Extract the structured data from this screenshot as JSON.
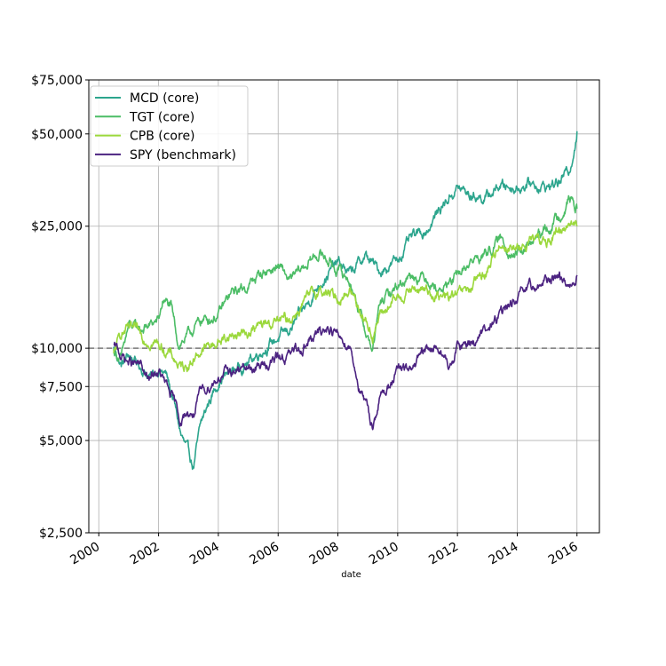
{
  "chart_data": {
    "type": "line",
    "title": "",
    "xlabel": "date",
    "ylabel": "",
    "y_scale": "log",
    "ylim": [
      2500,
      75000
    ],
    "xlim": [
      "1999-09-01",
      "2016-10-01"
    ],
    "grid": true,
    "legend_position": "top-left",
    "reference_line": {
      "value": 10000,
      "style": "dashed",
      "color": "#777777"
    },
    "y_ticks": [
      {
        "value": 2500,
        "label": "$2,500"
      },
      {
        "value": 5000,
        "label": "$5,000"
      },
      {
        "value": 7500,
        "label": "$7,500"
      },
      {
        "value": 10000,
        "label": "$10,000"
      },
      {
        "value": 25000,
        "label": "$25,000"
      },
      {
        "value": 50000,
        "label": "$50,000"
      },
      {
        "value": 75000,
        "label": "$75,000"
      }
    ],
    "x_ticks": [
      {
        "value": "2000-01-01",
        "label": "2000"
      },
      {
        "value": "2002-01-01",
        "label": "2002"
      },
      {
        "value": "2004-01-01",
        "label": "2004"
      },
      {
        "value": "2006-01-01",
        "label": "2006"
      },
      {
        "value": "2008-01-01",
        "label": "2008"
      },
      {
        "value": "2010-01-01",
        "label": "2010"
      },
      {
        "value": "2012-01-01",
        "label": "2012"
      },
      {
        "value": "2014-01-01",
        "label": "2014"
      },
      {
        "value": "2016-01-01",
        "label": "2016"
      }
    ],
    "series": [
      {
        "name": "MCD (core)",
        "color": "#2ca58d",
        "points": [
          [
            "2000-07-01",
            10000
          ],
          [
            "2000-10-01",
            8800
          ],
          [
            "2001-01-01",
            9500
          ],
          [
            "2001-04-01",
            9000
          ],
          [
            "2001-07-01",
            8500
          ],
          [
            "2001-10-01",
            8000
          ],
          [
            "2002-01-01",
            8600
          ],
          [
            "2002-04-01",
            8200
          ],
          [
            "2002-07-01",
            6800
          ],
          [
            "2002-10-01",
            5200
          ],
          [
            "2003-01-01",
            4500
          ],
          [
            "2003-03-01",
            4100
          ],
          [
            "2003-06-01",
            5600
          ],
          [
            "2003-09-01",
            6600
          ],
          [
            "2004-01-01",
            7800
          ],
          [
            "2004-06-01",
            8400
          ],
          [
            "2005-01-01",
            9000
          ],
          [
            "2005-06-01",
            9800
          ],
          [
            "2006-01-01",
            10800
          ],
          [
            "2006-06-01",
            11500
          ],
          [
            "2007-01-01",
            14000
          ],
          [
            "2007-06-01",
            16500
          ],
          [
            "2008-01-01",
            19000
          ],
          [
            "2008-06-01",
            17500
          ],
          [
            "2008-12-01",
            20000
          ],
          [
            "2009-06-01",
            17800
          ],
          [
            "2010-01-01",
            19500
          ],
          [
            "2010-06-01",
            22500
          ],
          [
            "2011-01-01",
            24500
          ],
          [
            "2011-06-01",
            28500
          ],
          [
            "2012-01-01",
            33500
          ],
          [
            "2012-06-01",
            31500
          ],
          [
            "2013-01-01",
            31000
          ],
          [
            "2013-06-01",
            34000
          ],
          [
            "2014-01-01",
            33500
          ],
          [
            "2014-06-01",
            34500
          ],
          [
            "2015-01-01",
            33500
          ],
          [
            "2015-06-01",
            35000
          ],
          [
            "2015-10-01",
            38000
          ],
          [
            "2016-01-01",
            51000
          ]
        ]
      },
      {
        "name": "TGT (core)",
        "color": "#4cbd66",
        "points": [
          [
            "2000-07-01",
            9800
          ],
          [
            "2000-10-01",
            9200
          ],
          [
            "2001-01-01",
            11800
          ],
          [
            "2001-06-01",
            11500
          ],
          [
            "2002-01-01",
            12300
          ],
          [
            "2002-03-01",
            14500
          ],
          [
            "2002-06-01",
            13500
          ],
          [
            "2002-09-01",
            10300
          ],
          [
            "2003-01-01",
            11000
          ],
          [
            "2003-06-01",
            12300
          ],
          [
            "2004-01-01",
            12800
          ],
          [
            "2004-06-01",
            15000
          ],
          [
            "2005-01-01",
            16000
          ],
          [
            "2005-06-01",
            17500
          ],
          [
            "2006-01-01",
            18500
          ],
          [
            "2006-06-01",
            16500
          ],
          [
            "2007-01-01",
            19000
          ],
          [
            "2007-06-01",
            20500
          ],
          [
            "2008-01-01",
            18000
          ],
          [
            "2008-06-01",
            16500
          ],
          [
            "2008-12-01",
            11500
          ],
          [
            "2009-03-01",
            9800
          ],
          [
            "2009-06-01",
            14000
          ],
          [
            "2010-01-01",
            16000
          ],
          [
            "2010-06-01",
            17500
          ],
          [
            "2011-01-01",
            17000
          ],
          [
            "2011-06-01",
            15500
          ],
          [
            "2012-01-01",
            17000
          ],
          [
            "2012-06-01",
            19000
          ],
          [
            "2013-01-01",
            20500
          ],
          [
            "2013-06-01",
            22500
          ],
          [
            "2014-01-01",
            20000
          ],
          [
            "2014-06-01",
            21500
          ],
          [
            "2015-01-01",
            24500
          ],
          [
            "2015-06-01",
            27000
          ],
          [
            "2015-10-01",
            31000
          ],
          [
            "2016-01-01",
            28500
          ]
        ]
      },
      {
        "name": "CPB (core)",
        "color": "#9bd83c",
        "points": [
          [
            "2000-07-01",
            9500
          ],
          [
            "2000-10-01",
            11200
          ],
          [
            "2001-01-01",
            11500
          ],
          [
            "2001-06-01",
            11000
          ],
          [
            "2002-01-01",
            10300
          ],
          [
            "2002-06-01",
            9500
          ],
          [
            "2002-10-01",
            8600
          ],
          [
            "2003-01-01",
            8900
          ],
          [
            "2003-06-01",
            9800
          ],
          [
            "2004-01-01",
            10500
          ],
          [
            "2004-06-01",
            11000
          ],
          [
            "2005-01-01",
            11300
          ],
          [
            "2005-06-01",
            11800
          ],
          [
            "2006-01-01",
            12200
          ],
          [
            "2006-06-01",
            12500
          ],
          [
            "2007-01-01",
            14500
          ],
          [
            "2007-06-01",
            15500
          ],
          [
            "2008-01-01",
            14500
          ],
          [
            "2008-06-01",
            15500
          ],
          [
            "2008-12-01",
            12500
          ],
          [
            "2009-03-01",
            11000
          ],
          [
            "2009-06-01",
            12800
          ],
          [
            "2010-01-01",
            14500
          ],
          [
            "2010-06-01",
            15500
          ],
          [
            "2011-01-01",
            15500
          ],
          [
            "2011-06-01",
            14500
          ],
          [
            "2012-01-01",
            14800
          ],
          [
            "2012-06-01",
            15500
          ],
          [
            "2013-01-01",
            18000
          ],
          [
            "2013-06-01",
            22000
          ],
          [
            "2014-01-01",
            21000
          ],
          [
            "2014-06-01",
            22000
          ],
          [
            "2015-01-01",
            22500
          ],
          [
            "2015-06-01",
            24000
          ],
          [
            "2015-10-01",
            26000
          ],
          [
            "2016-01-01",
            25000
          ]
        ]
      },
      {
        "name": "SPY (benchmark)",
        "color": "#4c2381",
        "points": [
          [
            "2000-07-01",
            10100
          ],
          [
            "2000-10-01",
            9500
          ],
          [
            "2001-01-01",
            9000
          ],
          [
            "2001-06-01",
            8700
          ],
          [
            "2001-09-01",
            7800
          ],
          [
            "2002-01-01",
            8400
          ],
          [
            "2002-06-01",
            7000
          ],
          [
            "2002-10-01",
            5800
          ],
          [
            "2003-01-01",
            6200
          ],
          [
            "2003-03-01",
            6100
          ],
          [
            "2003-06-01",
            7100
          ],
          [
            "2004-01-01",
            8100
          ],
          [
            "2004-06-01",
            8400
          ],
          [
            "2005-01-01",
            8600
          ],
          [
            "2005-06-01",
            8700
          ],
          [
            "2006-01-01",
            9300
          ],
          [
            "2006-06-01",
            9500
          ],
          [
            "2007-01-01",
            10500
          ],
          [
            "2007-06-01",
            11200
          ],
          [
            "2007-10-01",
            11800
          ],
          [
            "2008-01-01",
            11000
          ],
          [
            "2008-06-01",
            10200
          ],
          [
            "2008-10-01",
            7200
          ],
          [
            "2009-03-01",
            5600
          ],
          [
            "2009-06-01",
            6900
          ],
          [
            "2010-01-01",
            8400
          ],
          [
            "2010-06-01",
            8500
          ],
          [
            "2011-01-01",
            9900
          ],
          [
            "2011-06-01",
            10000
          ],
          [
            "2011-10-01",
            8500
          ],
          [
            "2012-01-01",
            10000
          ],
          [
            "2012-06-01",
            10500
          ],
          [
            "2013-01-01",
            11300
          ],
          [
            "2013-06-01",
            12800
          ],
          [
            "2014-01-01",
            14500
          ],
          [
            "2014-06-01",
            15500
          ],
          [
            "2015-01-01",
            16500
          ],
          [
            "2015-06-01",
            17500
          ],
          [
            "2015-09-01",
            16000
          ],
          [
            "2016-01-01",
            17300
          ]
        ]
      }
    ]
  }
}
